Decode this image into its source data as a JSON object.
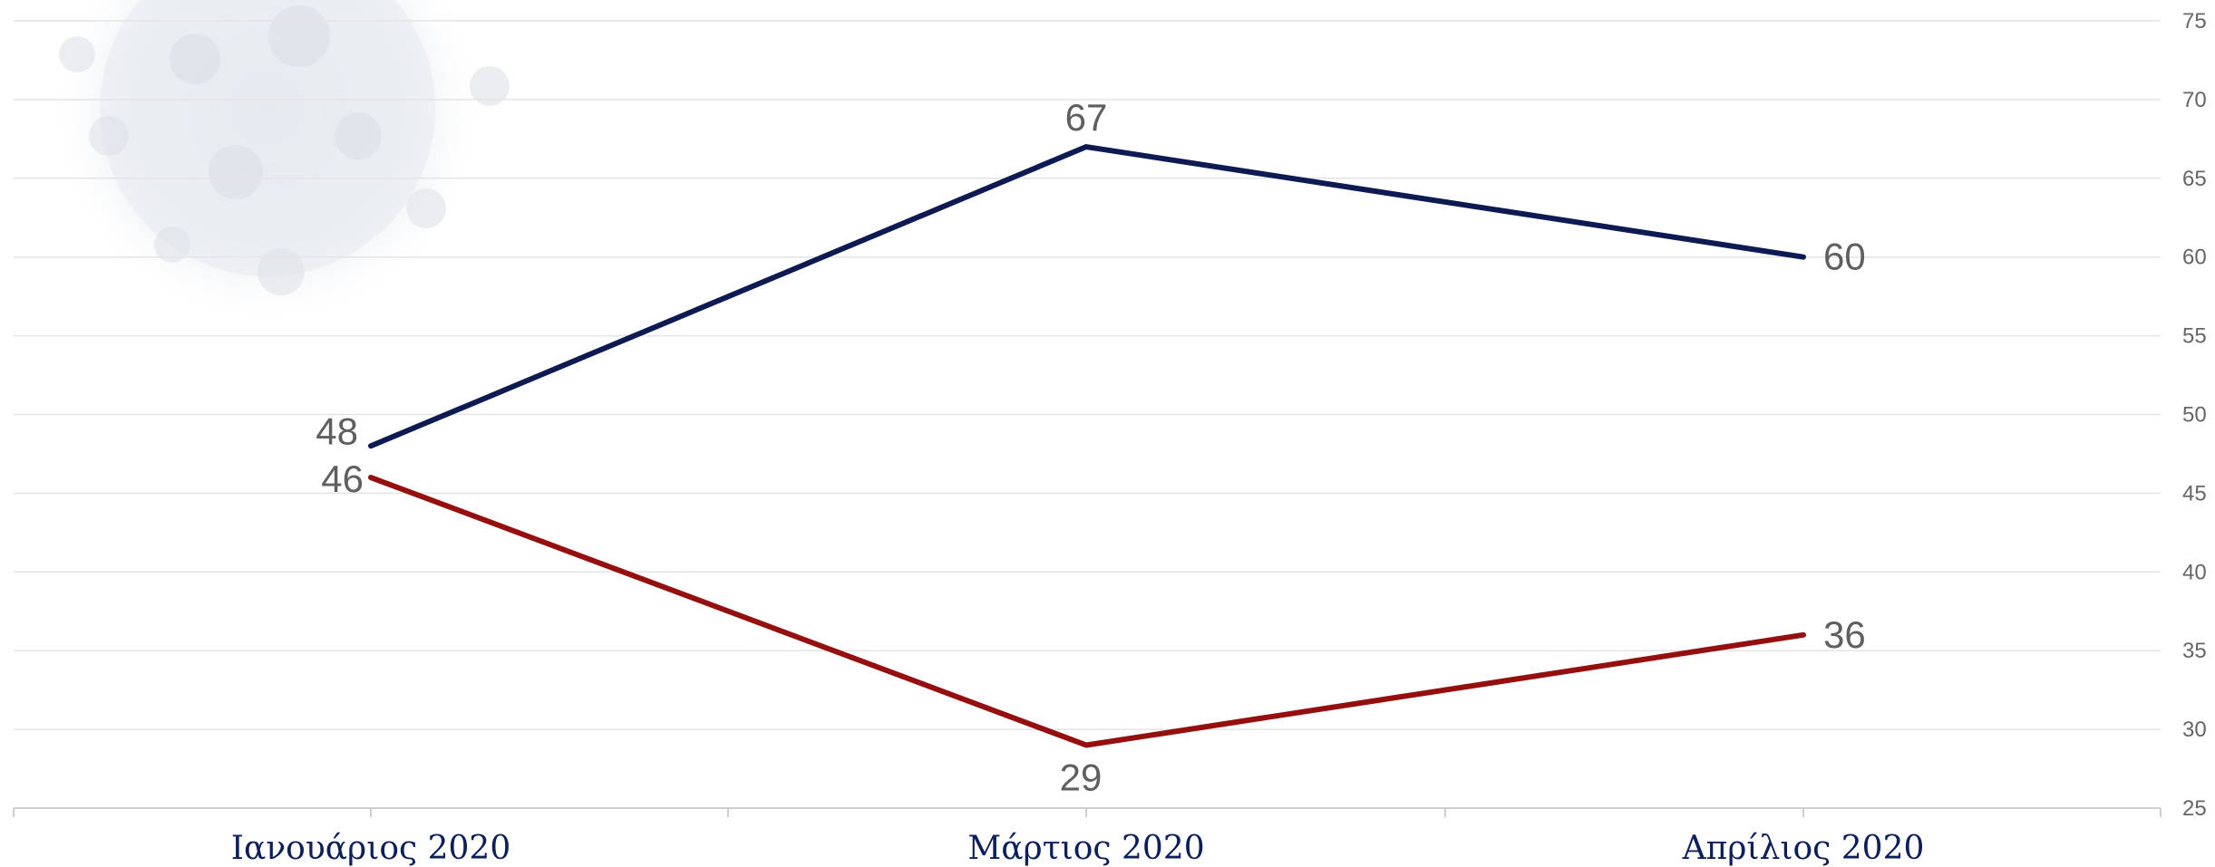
{
  "chart_data": {
    "type": "line",
    "categories": [
      "Ιανουάριος 2020",
      "Μάρτιος 2020",
      "Απρίλιος 2020"
    ],
    "series": [
      {
        "values": [
          48,
          67,
          60
        ],
        "color": "#0e1a52",
        "data_labels": [
          "48",
          "67",
          "60"
        ]
      },
      {
        "values": [
          46,
          29,
          36
        ],
        "color": "#960f0f",
        "data_labels": [
          "46",
          "29",
          "36"
        ]
      }
    ],
    "ylim": [
      25,
      75
    ],
    "yticks": [
      "25",
      "30",
      "35",
      "40",
      "45",
      "50",
      "55",
      "60",
      "65",
      "70",
      "75"
    ],
    "grid": true,
    "y_axis_side": "right",
    "watermark": "virus-watermark-icon"
  }
}
